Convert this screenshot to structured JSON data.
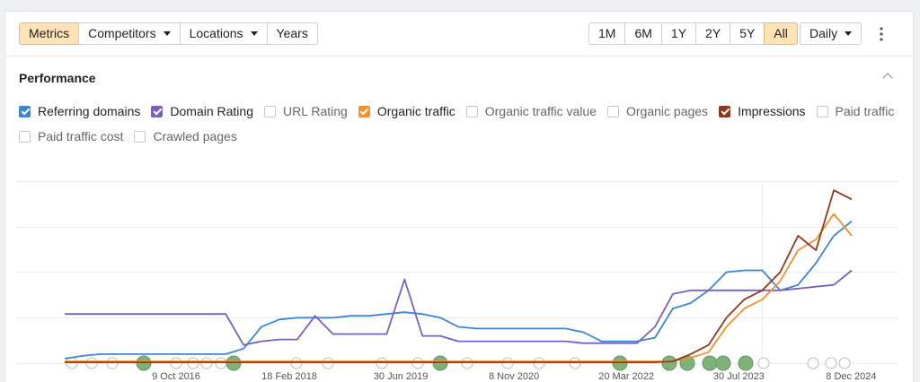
{
  "toolbar": {
    "tabs": [
      {
        "label": "Metrics",
        "active": true
      },
      {
        "label": "Competitors",
        "dropdown": true
      },
      {
        "label": "Locations",
        "dropdown": true
      },
      {
        "label": "Years"
      }
    ],
    "ranges": [
      {
        "label": "1M"
      },
      {
        "label": "6M"
      },
      {
        "label": "1Y"
      },
      {
        "label": "2Y"
      },
      {
        "label": "5Y"
      },
      {
        "label": "All",
        "active": true
      }
    ],
    "interval": "Daily"
  },
  "section": {
    "title": "Performance"
  },
  "chart_data": {
    "type": "line",
    "xlim": [
      0,
      44
    ],
    "ylim": [
      0,
      100
    ],
    "xticks": [
      {
        "value": 6.23,
        "label": "9 Oct 2016"
      },
      {
        "value": 12.56,
        "label": "18 Feb 2018"
      },
      {
        "value": 18.79,
        "label": "30 Jun 2019"
      },
      {
        "value": 25.12,
        "label": "8 Nov 2020"
      },
      {
        "value": 31.4,
        "label": "20 Mar 2022"
      },
      {
        "value": 37.69,
        "label": "30 Jul 2023"
      },
      {
        "value": 43.97,
        "label": "8 Dec 2024"
      }
    ],
    "series": [
      {
        "name": "Referring domains",
        "checked": true,
        "color": "#3a86d4",
        "values": [
          2.5,
          4,
          5,
          5,
          5,
          5,
          5,
          5,
          5,
          5,
          8,
          20,
          24,
          25,
          25,
          25,
          26,
          26,
          27,
          28,
          27,
          25,
          20,
          19,
          19,
          19,
          19,
          19,
          19,
          17,
          12,
          12,
          12,
          14,
          30,
          33,
          40,
          50,
          51,
          51,
          40,
          43,
          55,
          70,
          78
        ]
      },
      {
        "name": "Domain Rating",
        "checked": true,
        "color": "#7a5fbf",
        "values": [
          27,
          27,
          27,
          27,
          27,
          27,
          27,
          27,
          27,
          27,
          10,
          12,
          13,
          13,
          26,
          16,
          16,
          16,
          16,
          46,
          15,
          15,
          12,
          12,
          12,
          12,
          12,
          12,
          12,
          11,
          11,
          11,
          11,
          20,
          38,
          40,
          40,
          40,
          40,
          40,
          40,
          41,
          42,
          43,
          51
        ]
      },
      {
        "name": "URL Rating",
        "checked": false
      },
      {
        "name": "Organic traffic",
        "checked": true,
        "color": "#f0912f",
        "values": [
          1,
          1,
          1,
          1,
          1,
          1,
          1,
          1,
          1,
          1,
          1,
          1,
          1,
          1,
          1,
          1,
          1,
          1,
          1,
          1,
          1,
          1,
          1,
          1,
          1,
          1,
          1,
          1,
          1,
          1,
          1,
          1,
          1,
          1,
          1,
          3,
          6,
          20,
          30,
          35,
          45,
          62,
          68,
          82,
          70
        ]
      },
      {
        "name": "Organic traffic value",
        "checked": false
      },
      {
        "name": "Organic pages",
        "checked": false
      },
      {
        "name": "Impressions",
        "checked": true,
        "color": "#8b3a1f",
        "values": [
          0.5,
          0.5,
          0.5,
          0.5,
          0.5,
          0.5,
          0.5,
          0.5,
          0.5,
          0.5,
          0.5,
          0.5,
          0.5,
          0.5,
          0.5,
          0.5,
          0.5,
          0.5,
          0.5,
          0.5,
          0.5,
          0.5,
          0.5,
          0.5,
          0.5,
          0.5,
          0.5,
          0.5,
          0.5,
          0.5,
          0.5,
          0.5,
          0.5,
          0.5,
          1,
          5,
          10,
          25,
          35,
          40,
          50,
          70,
          62,
          95,
          90
        ]
      },
      {
        "name": "Paid traffic",
        "checked": false
      },
      {
        "name": "Paid traffic cost",
        "checked": false
      },
      {
        "name": "Crawled pages",
        "checked": false
      }
    ]
  }
}
